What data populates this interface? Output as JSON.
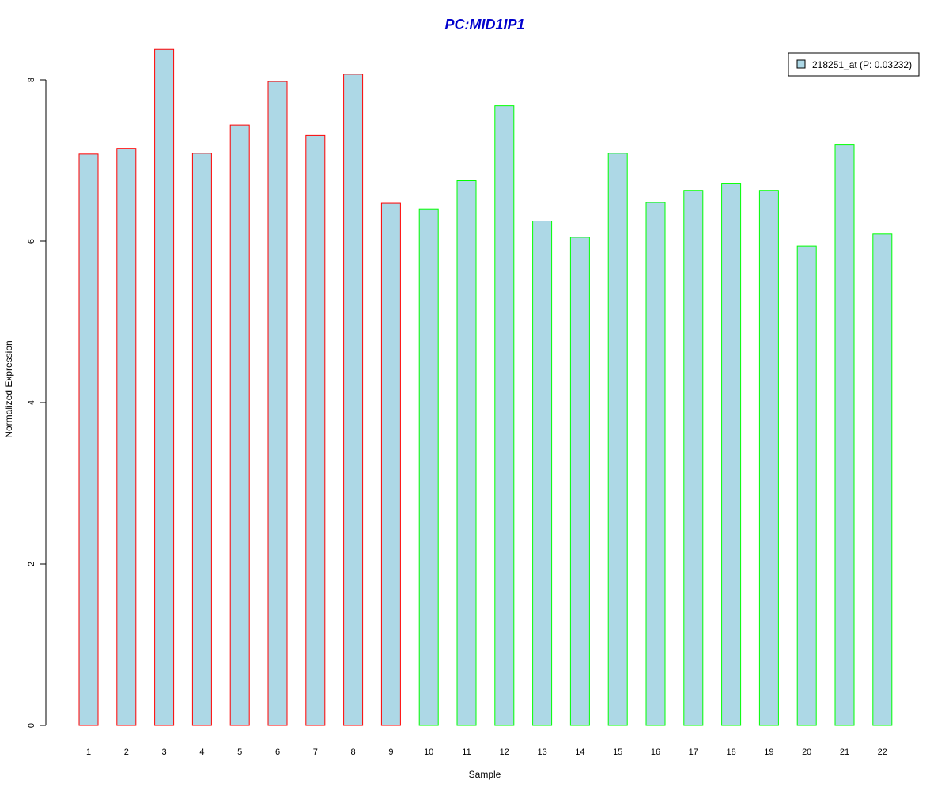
{
  "chart_data": {
    "type": "bar",
    "title": "PC:MID1IP1",
    "xlabel": "Sample",
    "ylabel": "Normalized Expression",
    "categories": [
      "1",
      "2",
      "3",
      "4",
      "5",
      "6",
      "7",
      "8",
      "9",
      "10",
      "11",
      "12",
      "13",
      "14",
      "15",
      "16",
      "17",
      "18",
      "19",
      "20",
      "21",
      "22"
    ],
    "series": [
      {
        "name": "218251_at (P: 0.03232)",
        "values": [
          7.08,
          7.15,
          8.38,
          7.09,
          7.44,
          7.98,
          7.31,
          8.07,
          6.47,
          6.4,
          6.75,
          7.68,
          6.25,
          6.05,
          7.09,
          6.48,
          6.63,
          6.72,
          6.63,
          5.94,
          7.2,
          6.09
        ]
      }
    ],
    "group_outline": [
      "red",
      "red",
      "red",
      "red",
      "red",
      "red",
      "red",
      "red",
      "red",
      "green",
      "green",
      "green",
      "green",
      "green",
      "green",
      "green",
      "green",
      "green",
      "green",
      "green",
      "green",
      "green"
    ],
    "yticks": [
      0,
      2,
      4,
      6,
      8
    ],
    "ylim": [
      0,
      8.38
    ],
    "legend_position": "top-right",
    "colors": {
      "bar_fill": "#add8e6",
      "outline_red": "#ff0000",
      "outline_green": "#00ff00",
      "title": "#0000cd",
      "axis": "#000000"
    }
  }
}
